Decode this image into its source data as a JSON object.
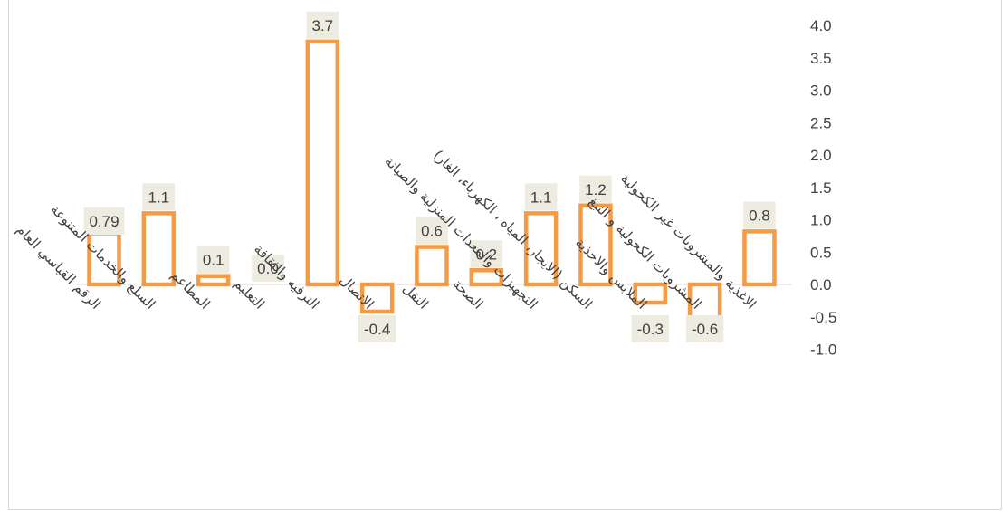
{
  "chart_data": {
    "type": "bar",
    "categories": [
      "الرقم القياسي العام",
      "السلع والخدمات المتنوعة",
      "المطاعم",
      "التعليم",
      "الترفيه والثقافة",
      "الاتصال",
      "النقل",
      "الصحة",
      "التجهيزات والمعدات المنزلية والصيانة",
      "السكن (الايجار، المياه ، الكهرباء، الغاز)",
      "الملابس والاحذية",
      "المشروبات الكحولية و التبغ",
      "الاغذية والمشروبات غير الكحولية"
    ],
    "values": [
      0.79,
      1.1,
      0.1,
      0.0,
      3.7,
      -0.4,
      0.6,
      0.2,
      1.1,
      1.2,
      -0.3,
      -0.6,
      0.8
    ],
    "value_labels": [
      "0.79",
      "1.1",
      "0.1",
      "0.0",
      "3.7",
      "-0.4",
      "0.6",
      "0.2",
      "1.1",
      "1.2",
      "-0.3",
      "-0.6",
      "0.8"
    ],
    "bar_heights": [
      0.79,
      1.1,
      0.13,
      0.0,
      3.75,
      -0.42,
      0.58,
      0.22,
      1.1,
      1.22,
      -0.28,
      -0.58,
      0.82
    ],
    "ylim": [
      -1.0,
      4.0
    ],
    "yticks": [
      "4.0",
      "3.5",
      "3.0",
      "2.5",
      "2.0",
      "1.5",
      "1.0",
      "0.5",
      "0.0",
      "-0.5",
      "-1.0"
    ],
    "ytick_values": [
      4.0,
      3.5,
      3.0,
      2.5,
      2.0,
      1.5,
      1.0,
      0.5,
      0.0,
      -0.5,
      -1.0
    ],
    "yaxis_side": "right",
    "grid": false,
    "title": "",
    "xlabel": "",
    "ylabel": "",
    "colors": {
      "bar_stroke": "#f59a45",
      "label_bg": "#eeece1",
      "text": "#404040",
      "axis": "#d9d9d9"
    }
  }
}
